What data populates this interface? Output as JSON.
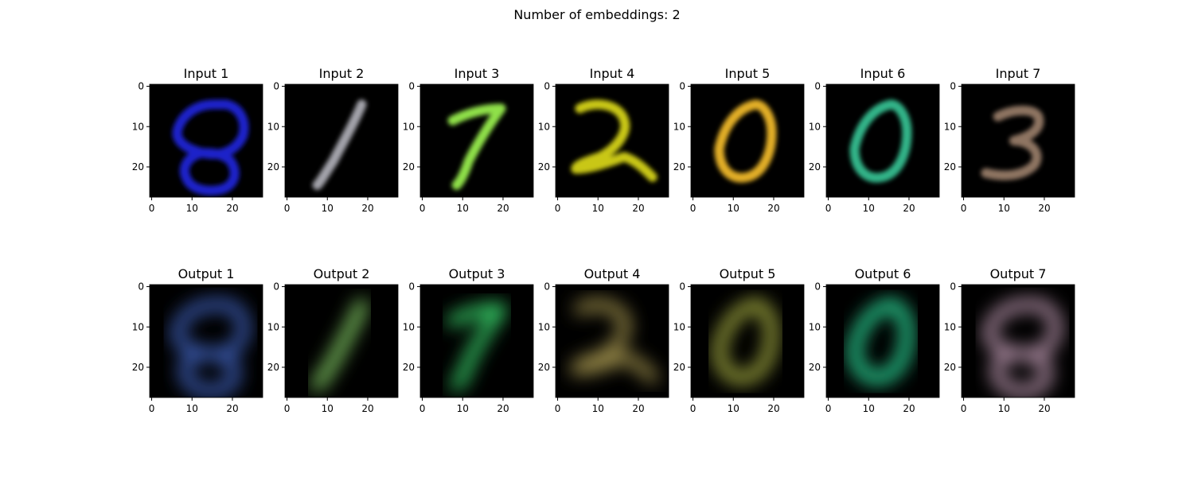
{
  "figure": {
    "title": "Number of embeddings: 2"
  },
  "chart_data": {
    "type": "image-grid",
    "title": "Number of embeddings: 2",
    "image_size": [
      28,
      28
    ],
    "axis_ticks": {
      "x": [
        "0",
        "10",
        "20"
      ],
      "y": [
        "0",
        "10",
        "20"
      ]
    },
    "rows": [
      {
        "name": "Input",
        "panels": [
          {
            "title": "Input 1",
            "digit": 8,
            "color": "#1a22c9"
          },
          {
            "title": "Input 2",
            "digit": 1,
            "color": "#a3a3aa"
          },
          {
            "title": "Input 3",
            "digit": 7,
            "color": "#8fe04a"
          },
          {
            "title": "Input 4",
            "digit": 2,
            "color": "#c9c712"
          },
          {
            "title": "Input 5",
            "digit": 0,
            "color": "#e2ae25"
          },
          {
            "title": "Input 6",
            "digit": 0,
            "color": "#33b488"
          },
          {
            "title": "Input 7",
            "digit": 3,
            "color": "#8e7462"
          }
        ]
      },
      {
        "name": "Output",
        "panels": [
          {
            "title": "Output 1",
            "digit": 8,
            "color": "#3d5fb8"
          },
          {
            "title": "Output 2",
            "digit": 1,
            "color": "#8ad86a"
          },
          {
            "title": "Output 3",
            "digit": 7,
            "color": "#39d36b"
          },
          {
            "title": "Output 4",
            "digit": 2,
            "color": "#9a8b4a"
          },
          {
            "title": "Output 5",
            "digit": 0,
            "color": "#a8b043"
          },
          {
            "title": "Output 6",
            "digit": 0,
            "color": "#2fe4a0"
          },
          {
            "title": "Output 7",
            "digit": 8,
            "color": "#b491a8"
          }
        ]
      }
    ]
  }
}
